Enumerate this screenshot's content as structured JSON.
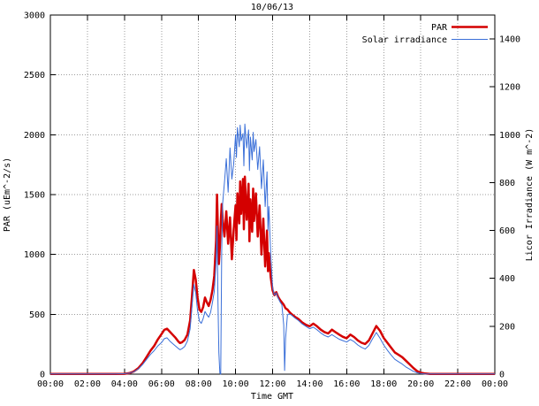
{
  "chart_data": {
    "type": "line",
    "title": "10/06/13",
    "xlabel": "Time GMT",
    "ylabel": "PAR (uEm^-2/s)",
    "y2label": "Licor Irradiance (W m^-2)",
    "xlim": [
      0,
      24
    ],
    "ylim": [
      0,
      3000
    ],
    "y2lim": [
      0,
      1500
    ],
    "grid": true,
    "legend_position": "top-right-inside",
    "x_ticks": [
      {
        "v": 0,
        "label": "00:00"
      },
      {
        "v": 2,
        "label": "02:00"
      },
      {
        "v": 4,
        "label": "04:00"
      },
      {
        "v": 6,
        "label": "06:00"
      },
      {
        "v": 8,
        "label": "08:00"
      },
      {
        "v": 10,
        "label": "10:00"
      },
      {
        "v": 12,
        "label": "12:00"
      },
      {
        "v": 14,
        "label": "14:00"
      },
      {
        "v": 16,
        "label": "16:00"
      },
      {
        "v": 18,
        "label": "18:00"
      },
      {
        "v": 20,
        "label": "20:00"
      },
      {
        "v": 22,
        "label": "22:00"
      },
      {
        "v": 24,
        "label": "00:00"
      }
    ],
    "y_ticks": [
      0,
      500,
      1000,
      1500,
      2000,
      2500,
      3000
    ],
    "y2_ticks": [
      0,
      200,
      400,
      600,
      800,
      1000,
      1200,
      1400
    ],
    "series": [
      {
        "name": "PAR",
        "axis": "left",
        "color": "#d40000",
        "width": 2.5
      },
      {
        "name": "Solar irradiance",
        "axis": "right",
        "color": "#3a6fd8",
        "width": 1
      }
    ],
    "points": [
      [
        0,
        2,
        1
      ],
      [
        0.5,
        2,
        1
      ],
      [
        1,
        2,
        1
      ],
      [
        1.5,
        2,
        1
      ],
      [
        2,
        2,
        1
      ],
      [
        2.5,
        2,
        1
      ],
      [
        3,
        2,
        1
      ],
      [
        3.5,
        2,
        1
      ],
      [
        4,
        3,
        2
      ],
      [
        4.25,
        8,
        4
      ],
      [
        4.5,
        22,
        10
      ],
      [
        4.75,
        50,
        22
      ],
      [
        5,
        95,
        42
      ],
      [
        5.2,
        145,
        62
      ],
      [
        5.4,
        195,
        82
      ],
      [
        5.6,
        235,
        98
      ],
      [
        5.8,
        290,
        118
      ],
      [
        6,
        335,
        132
      ],
      [
        6.15,
        370,
        148
      ],
      [
        6.3,
        380,
        152
      ],
      [
        6.45,
        355,
        138
      ],
      [
        6.6,
        330,
        128
      ],
      [
        6.75,
        305,
        118
      ],
      [
        6.9,
        275,
        108
      ],
      [
        7,
        260,
        102
      ],
      [
        7.1,
        265,
        106
      ],
      [
        7.25,
        285,
        115
      ],
      [
        7.4,
        330,
        138
      ],
      [
        7.55,
        450,
        190
      ],
      [
        7.65,
        650,
        285
      ],
      [
        7.75,
        870,
        375
      ],
      [
        7.85,
        790,
        340
      ],
      [
        7.95,
        640,
        265
      ],
      [
        8.05,
        540,
        222
      ],
      [
        8.15,
        520,
        212
      ],
      [
        8.25,
        560,
        232
      ],
      [
        8.35,
        640,
        262
      ],
      [
        8.45,
        600,
        248
      ],
      [
        8.55,
        570,
        238
      ],
      [
        8.65,
        620,
        258
      ],
      [
        8.75,
        700,
        298
      ],
      [
        8.85,
        820,
        345
      ],
      [
        8.95,
        1120,
        470
      ],
      [
        9,
        1500,
        620
      ],
      [
        9.05,
        1180,
        300
      ],
      [
        9.1,
        920,
        90
      ],
      [
        9.15,
        1060,
        5
      ],
      [
        9.2,
        1260,
        0
      ],
      [
        9.25,
        1420,
        510
      ],
      [
        9.3,
        1300,
        710
      ],
      [
        9.4,
        1150,
        800
      ],
      [
        9.5,
        1360,
        900
      ],
      [
        9.6,
        1090,
        760
      ],
      [
        9.7,
        1310,
        945
      ],
      [
        9.8,
        960,
        815
      ],
      [
        9.9,
        1210,
        880
      ],
      [
        10,
        1410,
        1000
      ],
      [
        10.05,
        1120,
        905
      ],
      [
        10.1,
        1510,
        1030
      ],
      [
        10.2,
        1260,
        950
      ],
      [
        10.25,
        1610,
        1040
      ],
      [
        10.3,
        1340,
        975
      ],
      [
        10.4,
        1630,
        1005
      ],
      [
        10.45,
        1210,
        870
      ],
      [
        10.5,
        1650,
        1045
      ],
      [
        10.6,
        1290,
        945
      ],
      [
        10.7,
        1590,
        1020
      ],
      [
        10.75,
        1110,
        850
      ],
      [
        10.8,
        1460,
        990
      ],
      [
        10.9,
        1190,
        895
      ],
      [
        10.95,
        1550,
        1010
      ],
      [
        11,
        1280,
        930
      ],
      [
        11.1,
        1510,
        980
      ],
      [
        11.2,
        1150,
        855
      ],
      [
        11.3,
        1410,
        950
      ],
      [
        11.4,
        1000,
        775
      ],
      [
        11.5,
        1300,
        895
      ],
      [
        11.6,
        900,
        700
      ],
      [
        11.7,
        1200,
        845
      ],
      [
        11.75,
        860,
        600
      ],
      [
        11.8,
        1010,
        700
      ],
      [
        11.9,
        810,
        500
      ],
      [
        12,
        700,
        360
      ],
      [
        12.1,
        660,
        330
      ],
      [
        12.2,
        685,
        340
      ],
      [
        12.3,
        645,
        318
      ],
      [
        12.4,
        620,
        302
      ],
      [
        12.5,
        600,
        290
      ],
      [
        12.6,
        580,
        205
      ],
      [
        12.65,
        565,
        15
      ],
      [
        12.7,
        550,
        150
      ],
      [
        12.8,
        540,
        248
      ],
      [
        12.9,
        520,
        252
      ],
      [
        13,
        505,
        248
      ],
      [
        13.2,
        480,
        235
      ],
      [
        13.4,
        460,
        224
      ],
      [
        13.6,
        432,
        210
      ],
      [
        13.8,
        412,
        200
      ],
      [
        14,
        400,
        190
      ],
      [
        14.2,
        422,
        196
      ],
      [
        14.4,
        400,
        185
      ],
      [
        14.6,
        372,
        172
      ],
      [
        14.8,
        352,
        162
      ],
      [
        15,
        340,
        155
      ],
      [
        15.2,
        372,
        165
      ],
      [
        15.4,
        350,
        155
      ],
      [
        15.6,
        330,
        146
      ],
      [
        15.8,
        312,
        140
      ],
      [
        16,
        300,
        134
      ],
      [
        16.2,
        330,
        145
      ],
      [
        16.4,
        310,
        136
      ],
      [
        16.6,
        282,
        122
      ],
      [
        16.8,
        262,
        112
      ],
      [
        17,
        252,
        105
      ],
      [
        17.2,
        282,
        120
      ],
      [
        17.4,
        342,
        148
      ],
      [
        17.6,
        402,
        174
      ],
      [
        17.8,
        362,
        150
      ],
      [
        18,
        302,
        122
      ],
      [
        18.2,
        262,
        100
      ],
      [
        18.4,
        222,
        80
      ],
      [
        18.6,
        182,
        62
      ],
      [
        18.8,
        162,
        52
      ],
      [
        19,
        142,
        42
      ],
      [
        19.2,
        112,
        30
      ],
      [
        19.4,
        82,
        21
      ],
      [
        19.6,
        52,
        12
      ],
      [
        19.8,
        26,
        6
      ],
      [
        20,
        12,
        3
      ],
      [
        20.25,
        5,
        1
      ],
      [
        20.5,
        2,
        1
      ],
      [
        21,
        2,
        1
      ],
      [
        21.5,
        2,
        1
      ],
      [
        22,
        2,
        1
      ],
      [
        22.5,
        2,
        1
      ],
      [
        23,
        2,
        1
      ],
      [
        23.5,
        2,
        1
      ],
      [
        24,
        2,
        1
      ]
    ]
  }
}
